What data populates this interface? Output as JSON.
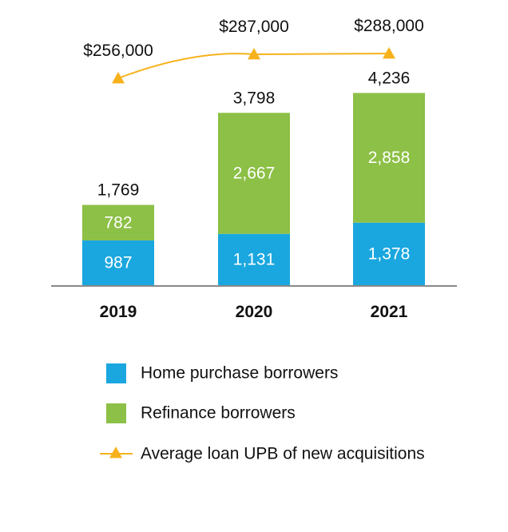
{
  "chart_data": {
    "type": "bar",
    "stacked": true,
    "categories": [
      "2019",
      "2020",
      "2021"
    ],
    "series": [
      {
        "name": "Home purchase borrowers",
        "values": [
          987,
          1131,
          1378
        ],
        "labels": [
          "987",
          "1,131",
          "1,378"
        ],
        "color": "#1aa7df"
      },
      {
        "name": "Refinance borrowers",
        "values": [
          782,
          2667,
          2858
        ],
        "labels": [
          "782",
          "2,667",
          "2,858"
        ],
        "color": "#8cc046"
      }
    ],
    "totals": {
      "values": [
        1769,
        3798,
        4236
      ],
      "labels": [
        "1,769",
        "3,798",
        "4,236"
      ]
    },
    "line_series": {
      "name": "Average loan UPB of new acquisitions",
      "values": [
        256000,
        287000,
        288000
      ],
      "labels": [
        "$256,000",
        "$287,000",
        "$288,000"
      ],
      "color": "#f7b21b",
      "marker": "triangle"
    },
    "legend": {
      "placement": "bottom"
    },
    "grid": false
  }
}
